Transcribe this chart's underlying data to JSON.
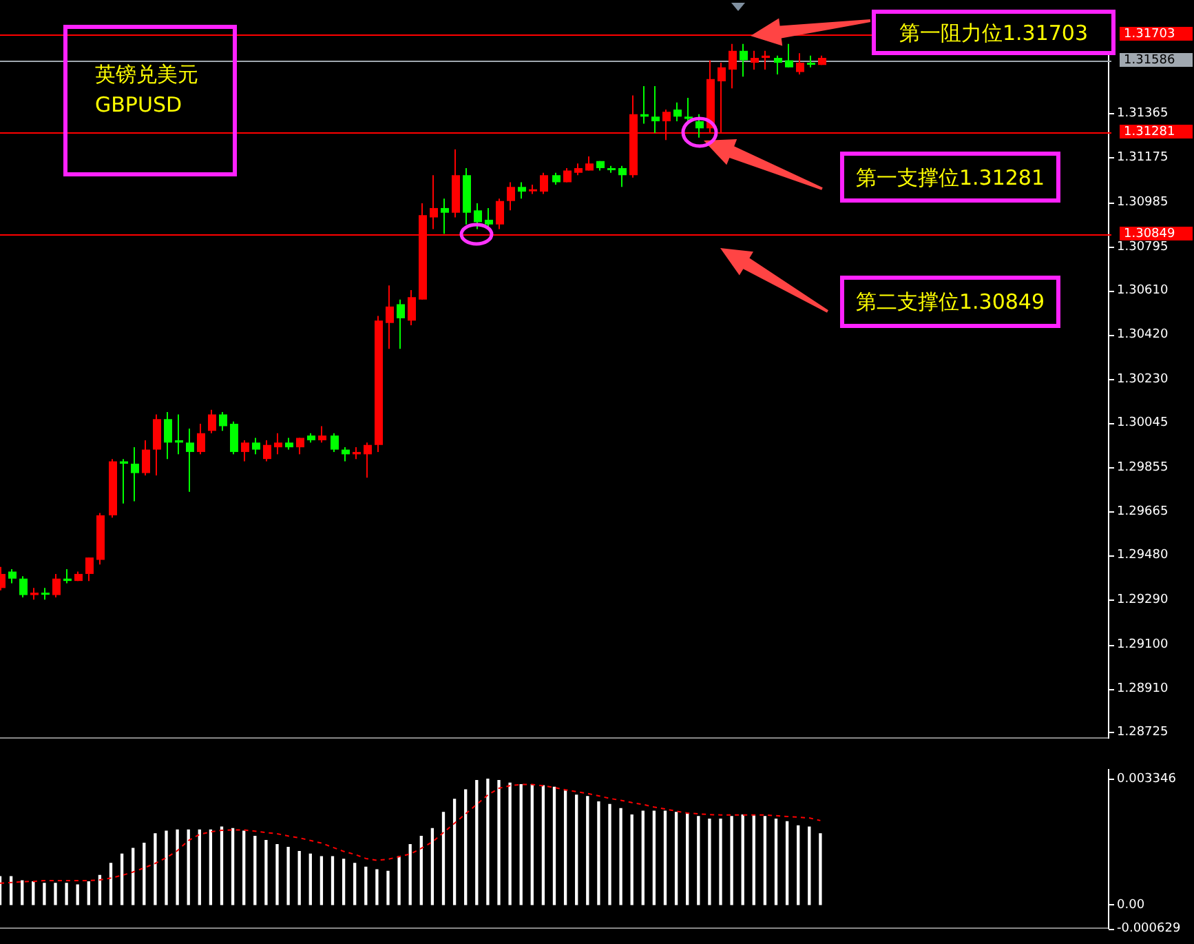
{
  "chart_data": [
    {
      "type": "candlestick",
      "title": "英镑兑美元\nGBPUSD",
      "tick_labels": "y",
      "grid": false,
      "categories": [
        null,
        null,
        null,
        null,
        null,
        null,
        null,
        null,
        null,
        null,
        null,
        null,
        null,
        null,
        null,
        null,
        null,
        null,
        null,
        null,
        null,
        null,
        null,
        null,
        null,
        null,
        null,
        null,
        null,
        null,
        null,
        null,
        null,
        null,
        null,
        null,
        null,
        null,
        null,
        null,
        null,
        null,
        null,
        null,
        null,
        null,
        null,
        null,
        null,
        null,
        null,
        null,
        null,
        null,
        null,
        null,
        null,
        null,
        null,
        null,
        null,
        null,
        null,
        null,
        null,
        null,
        null,
        null,
        null,
        null,
        null,
        null,
        null,
        null,
        null,
        null,
        null,
        null,
        null,
        null,
        null,
        null,
        null,
        null,
        null,
        null,
        null,
        null,
        null,
        null,
        null,
        null,
        null,
        null,
        null,
        null,
        null,
        null,
        null,
        null,
        null
      ],
      "ohlc": [
        [
          1.2934,
          1.2943,
          1.2933,
          1.294
        ],
        [
          1.2941,
          1.2942,
          1.2936,
          1.2938
        ],
        [
          1.2938,
          1.2939,
          1.293,
          1.2931
        ],
        [
          1.2931,
          1.2934,
          1.2929,
          1.2932
        ],
        [
          1.2932,
          1.2934,
          1.2929,
          1.2932
        ],
        [
          1.2931,
          1.294,
          1.293,
          1.2938
        ],
        [
          1.2938,
          1.2942,
          1.2936,
          1.2937
        ],
        [
          1.2937,
          1.2941,
          1.2937,
          1.294
        ],
        [
          1.294,
          1.2947,
          1.2937,
          1.2947
        ],
        [
          1.2946,
          1.2966,
          1.2944,
          1.2965
        ],
        [
          1.2965,
          1.2989,
          1.2964,
          1.2988
        ],
        [
          1.2988,
          1.2989,
          1.297,
          1.2987
        ],
        [
          1.2987,
          1.2994,
          1.2971,
          1.2983
        ],
        [
          1.2983,
          1.2997,
          1.2982,
          1.2993
        ],
        [
          1.2993,
          1.3008,
          1.2982,
          1.3006
        ],
        [
          1.3006,
          1.3009,
          1.2989,
          1.2996
        ],
        [
          1.2997,
          1.3008,
          1.2991,
          1.2996
        ],
        [
          1.2996,
          1.3002,
          1.2975,
          1.2992
        ],
        [
          1.2992,
          1.3004,
          1.2991,
          1.3
        ],
        [
          1.3001,
          1.301,
          1.3,
          1.3008
        ],
        [
          1.3008,
          1.3009,
          1.3001,
          1.3003
        ],
        [
          1.3004,
          1.3005,
          1.2991,
          1.2992
        ],
        [
          1.2992,
          1.2997,
          1.2988,
          1.2996
        ],
        [
          1.2996,
          1.2998,
          1.2991,
          1.2993
        ],
        [
          1.2989,
          1.2997,
          1.2988,
          1.2995
        ],
        [
          1.2994,
          1.3,
          1.2991,
          1.2996
        ],
        [
          1.2996,
          1.2998,
          1.2993,
          1.2994
        ],
        [
          1.2994,
          1.2998,
          1.2991,
          1.2998
        ],
        [
          1.2999,
          1.3,
          1.2996,
          1.2997
        ],
        [
          1.2997,
          1.3003,
          1.2996,
          1.2999
        ],
        [
          1.2999,
          1.3,
          1.2992,
          1.2993
        ],
        [
          1.2993,
          1.2994,
          1.2988,
          1.2991
        ],
        [
          1.2991,
          1.2994,
          1.2989,
          1.2992
        ],
        [
          1.2991,
          1.2996,
          1.2981,
          1.2995
        ],
        [
          1.2995,
          1.305,
          1.2992,
          1.3048
        ],
        [
          1.3047,
          1.3063,
          1.3036,
          1.3054
        ],
        [
          1.3055,
          1.3057,
          1.3036,
          1.3049
        ],
        [
          1.3048,
          1.3061,
          1.3046,
          1.3058
        ],
        [
          1.3057,
          1.3098,
          1.3057,
          1.3093
        ],
        [
          1.3092,
          1.311,
          1.3087,
          1.3096
        ],
        [
          1.3096,
          1.31,
          1.3085,
          1.3094
        ],
        [
          1.3094,
          1.3121,
          1.3092,
          1.311
        ],
        [
          1.311,
          1.3113,
          1.3089,
          1.3094
        ],
        [
          1.3095,
          1.3098,
          1.3087,
          1.309
        ],
        [
          1.3091,
          1.3096,
          1.3087,
          1.3089
        ],
        [
          1.3089,
          1.31,
          1.3087,
          1.3099
        ],
        [
          1.3099,
          1.3107,
          1.3095,
          1.3105
        ],
        [
          1.3105,
          1.3107,
          1.31,
          1.3103
        ],
        [
          1.3104,
          1.3106,
          1.3102,
          1.3104
        ],
        [
          1.3103,
          1.3111,
          1.3102,
          1.311
        ],
        [
          1.311,
          1.3111,
          1.3106,
          1.3107
        ],
        [
          1.3107,
          1.3113,
          1.3107,
          1.3112
        ],
        [
          1.3111,
          1.3115,
          1.311,
          1.3113
        ],
        [
          1.3112,
          1.3118,
          1.3112,
          1.3115
        ],
        [
          1.3116,
          1.3116,
          1.3112,
          1.3113
        ],
        [
          1.3113,
          1.3114,
          1.3111,
          1.3113
        ],
        [
          1.3113,
          1.3114,
          1.3105,
          1.311
        ],
        [
          1.311,
          1.3144,
          1.3109,
          1.3136
        ],
        [
          1.3136,
          1.3148,
          1.3132,
          1.3135
        ],
        [
          1.3135,
          1.3148,
          1.3128,
          1.3133
        ],
        [
          1.3133,
          1.3138,
          1.3125,
          1.3137
        ],
        [
          1.3138,
          1.3141,
          1.3133,
          1.3135
        ],
        [
          1.3135,
          1.3143,
          1.3133,
          1.3134
        ],
        [
          1.3133,
          1.3136,
          1.3126,
          1.313
        ],
        [
          1.313,
          1.3159,
          1.3128,
          1.3151
        ],
        [
          1.315,
          1.3158,
          1.3128,
          1.3156
        ],
        [
          1.3155,
          1.3166,
          1.3147,
          1.3163
        ],
        [
          1.3163,
          1.3166,
          1.3152,
          1.3159
        ],
        [
          1.3158,
          1.3163,
          1.3155,
          1.316
        ],
        [
          1.316,
          1.3163,
          1.3155,
          1.3161
        ],
        [
          1.316,
          1.3161,
          1.3153,
          1.3158
        ],
        [
          1.3159,
          1.3166,
          1.3156,
          1.3156
        ],
        [
          1.3154,
          1.3162,
          1.3153,
          1.3158
        ],
        [
          1.3158,
          1.3161,
          1.3156,
          1.3158
        ],
        [
          1.3157,
          1.3161,
          1.3157,
          1.316
        ],
        null,
        null,
        null,
        null,
        null,
        null,
        null,
        null,
        null,
        null,
        null,
        null,
        null,
        null,
        null,
        null,
        null,
        null,
        null,
        null,
        null,
        null,
        null,
        null,
        null,
        null
      ],
      "colors": [
        "#ff0000",
        "#00ff00",
        "#00ff00",
        "#ff0000",
        "#00ff00",
        "#ff0000",
        "#00ff00",
        "#ff0000",
        "#ff0000",
        "#ff0000",
        "#ff0000",
        "#00ff00",
        "#00ff00",
        "#ff0000",
        "#ff0000",
        "#00ff00",
        "#00ff00",
        "#00ff00",
        "#ff0000",
        "#ff0000",
        "#00ff00",
        "#00ff00",
        "#ff0000",
        "#00ff00",
        "#ff0000",
        "#ff0000",
        "#00ff00",
        "#ff0000",
        "#00ff00",
        "#ff0000",
        "#00ff00",
        "#00ff00",
        "#ff0000",
        "#ff0000",
        "#ff0000",
        "#ff0000",
        "#00ff00",
        "#ff0000",
        "#ff0000",
        "#ff0000",
        "#00ff00",
        "#ff0000",
        "#00ff00",
        "#00ff00",
        "#00ff00",
        "#ff0000",
        "#ff0000",
        "#00ff00",
        "#ff0000",
        "#ff0000",
        "#00ff00",
        "#ff0000",
        "#ff0000",
        "#ff0000",
        "#00ff00",
        "#00ff00",
        "#00ff00",
        "#ff0000",
        "#00ff00",
        "#00ff00",
        "#ff0000",
        "#00ff00",
        "#00ff00",
        "#00ff00",
        "#ff0000",
        "#ff0000",
        "#ff0000",
        "#00ff00",
        "#ff0000",
        "#ff0000",
        "#00ff00",
        "#00ff00",
        "#ff0000",
        "#00ff00",
        "#ff0000",
        null,
        null,
        null,
        null,
        null,
        null,
        null,
        null,
        null,
        null,
        null,
        null,
        null,
        null,
        null,
        null,
        null,
        null,
        null,
        null,
        null,
        null,
        null,
        null,
        null,
        null
      ],
      "ylim": [
        1.287,
        1.3178
      ],
      "yticks": [
        {
          "value": 1.31365,
          "label": "1.31365"
        },
        {
          "value": 1.31175,
          "label": "1.31175"
        },
        {
          "value": 1.30985,
          "label": "1.30985"
        },
        {
          "value": 1.30795,
          "label": "1.30795"
        },
        {
          "value": 1.3061,
          "label": "1.30610"
        },
        {
          "value": 1.3042,
          "label": "1.30420"
        },
        {
          "value": 1.3023,
          "label": "1.30230"
        },
        {
          "value": 1.30045,
          "label": "1.30045"
        },
        {
          "value": 1.29855,
          "label": "1.29855"
        },
        {
          "value": 1.29665,
          "label": "1.29665"
        },
        {
          "value": 1.2948,
          "label": "1.29480"
        },
        {
          "value": 1.2929,
          "label": "1.29290"
        },
        {
          "value": 1.291,
          "label": "1.29100"
        },
        {
          "value": 1.2891,
          "label": "1.28910"
        },
        {
          "value": 1.28725,
          "label": "1.28725"
        }
      ],
      "ref_lines": [
        {
          "axis": "y",
          "value": 1.31703,
          "label": "1.31703",
          "color": "#ff0000"
        },
        {
          "axis": "y",
          "value": 1.31586,
          "label": "1.31586",
          "color": "#a0a8b0"
        },
        {
          "axis": "y",
          "value": 1.31281,
          "label": "1.31281",
          "color": "#ff0000"
        },
        {
          "axis": "y",
          "value": 1.30849,
          "label": "1.30849",
          "color": "#ff0000"
        }
      ],
      "annotations": [
        "第一阻力位1.31703",
        "第一支撑位1.31281",
        "第二支撑位1.30849"
      ]
    },
    {
      "type": "bar",
      "tick_labels": "y",
      "grid": false,
      "categories": [
        null,
        null,
        null,
        null,
        null,
        null,
        null,
        null,
        null,
        null,
        null,
        null,
        null,
        null,
        null,
        null,
        null,
        null,
        null,
        null,
        null,
        null,
        null,
        null,
        null,
        null,
        null,
        null,
        null,
        null,
        null,
        null,
        null,
        null,
        null,
        null,
        null,
        null,
        null,
        null,
        null,
        null,
        null,
        null,
        null,
        null,
        null,
        null,
        null,
        null,
        null,
        null,
        null,
        null,
        null,
        null,
        null,
        null,
        null,
        null,
        null,
        null,
        null,
        null,
        null,
        null,
        null,
        null,
        null,
        null,
        null,
        null,
        null,
        null,
        null,
        null,
        null,
        null,
        null,
        null,
        null,
        null,
        null,
        null,
        null,
        null,
        null,
        null,
        null,
        null,
        null,
        null,
        null,
        null,
        null,
        null,
        null,
        null,
        null,
        null,
        null
      ],
      "series": [
        {
          "type": "bar",
          "color": "#ffffff",
          "values": [
            0.00075,
            0.00075,
            0.00064,
            0.00061,
            0.00057,
            0.00057,
            0.00057,
            0.00053,
            0.00061,
            0.00078,
            0.0011,
            0.00135,
            0.0015,
            0.00164,
            0.00189,
            0.00196,
            0.00199,
            0.00199,
            0.00199,
            0.00199,
            0.00207,
            0.00203,
            0.00196,
            0.00182,
            0.00171,
            0.0016,
            0.00153,
            0.00142,
            0.00135,
            0.00128,
            0.00128,
            0.00121,
            0.0011,
            0.001,
            0.00093,
            0.00089,
            0.00128,
            0.0016,
            0.00182,
            0.00203,
            0.00246,
            0.00281,
            0.00306,
            0.00331,
            0.003346,
            0.00331,
            0.00324,
            0.0032,
            0.0032,
            0.00317,
            0.00313,
            0.00303,
            0.00292,
            0.00288,
            0.00274,
            0.00267,
            0.00256,
            0.00239,
            0.00249,
            0.00249,
            0.00249,
            0.00246,
            0.00242,
            0.00235,
            0.00228,
            0.00228,
            0.00235,
            0.00239,
            0.00239,
            0.00235,
            0.00228,
            0.00221,
            0.0021,
            0.00207,
            0.00189,
            null,
            null,
            null,
            null,
            null,
            null,
            null,
            null,
            null,
            null,
            null,
            null,
            null,
            null,
            null,
            null,
            null,
            null,
            null,
            null,
            null,
            null,
            null,
            null,
            null,
            null
          ]
        },
        {
          "type": "line",
          "color": "#ff0000",
          "line_style": "dashed",
          "values": [
            0.00057,
            0.00059,
            0.00061,
            0.00062,
            0.00064,
            0.00064,
            0.00064,
            0.00064,
            0.00064,
            0.00066,
            0.00071,
            0.00078,
            0.00087,
            0.00098,
            0.0011,
            0.00125,
            0.00144,
            0.00171,
            0.00187,
            0.00194,
            0.00198,
            0.00199,
            0.00199,
            0.00196,
            0.00192,
            0.00189,
            0.00183,
            0.00178,
            0.00171,
            0.00164,
            0.00153,
            0.00142,
            0.00134,
            0.00123,
            0.00118,
            0.00121,
            0.00128,
            0.00135,
            0.0015,
            0.00167,
            0.00192,
            0.00217,
            0.00242,
            0.00267,
            0.00292,
            0.0031,
            0.00317,
            0.0032,
            0.0032,
            0.00317,
            0.00312,
            0.00306,
            0.00301,
            0.00296,
            0.0029,
            0.00283,
            0.00278,
            0.00272,
            0.00267,
            0.0026,
            0.00255,
            0.00249,
            0.00244,
            0.00242,
            0.0024,
            0.00239,
            0.00239,
            0.00239,
            0.00239,
            0.00239,
            0.00237,
            0.00235,
            0.00233,
            0.00231,
            0.00224,
            null,
            null,
            null,
            null,
            null,
            null,
            null,
            null,
            null,
            null,
            null,
            null,
            null,
            null,
            null,
            null,
            null,
            null,
            null,
            null,
            null,
            null,
            null,
            null,
            null,
            null
          ]
        }
      ],
      "ylim": [
        -0.000629,
        0.0036
      ],
      "yticks": [
        0.003346,
        {
          "value": 0,
          "label": "0.00"
        },
        -0.000629
      ]
    }
  ]
}
